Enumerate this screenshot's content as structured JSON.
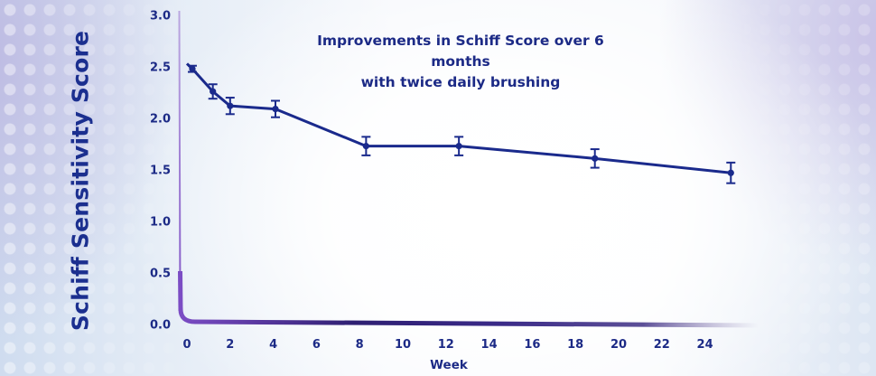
{
  "chart_data": {
    "type": "line",
    "title": "Improvements in Schiff Score over 6 months with twice daily brushing",
    "title_lines": [
      "Improvements in Schiff Score over 6 months",
      "with twice daily brushing"
    ],
    "xlabel": "Week",
    "ylabel": "Schiff Sensitivity Score",
    "xlim": [
      0,
      26
    ],
    "ylim": [
      0.0,
      3.0
    ],
    "x_ticks": [
      "0",
      "2",
      "4",
      "6",
      "8",
      "10",
      "12",
      "14",
      "16",
      "18",
      "20",
      "22",
      "24"
    ],
    "y_ticks": [
      "0.0",
      "0.5",
      "1.0",
      "1.5",
      "2.0",
      "2.5",
      "3.0"
    ],
    "grid": false,
    "legend": null,
    "series": [
      {
        "name": "Schiff Sensitivity Score",
        "color": "#1a2a8c",
        "x": [
          0.25,
          1.2,
          2.0,
          4.1,
          8.3,
          12.6,
          18.9,
          25.2
        ],
        "values": [
          2.49,
          2.27,
          2.13,
          2.1,
          1.74,
          1.74,
          1.62,
          1.48
        ],
        "error": [
          0.03,
          0.07,
          0.08,
          0.08,
          0.09,
          0.09,
          0.09,
          0.1
        ]
      }
    ]
  },
  "colors": {
    "text": "#1c2a86",
    "line": "#1a2a8c",
    "axis_start": "#7b4cc4",
    "axis_end": "#2a1f6e"
  }
}
